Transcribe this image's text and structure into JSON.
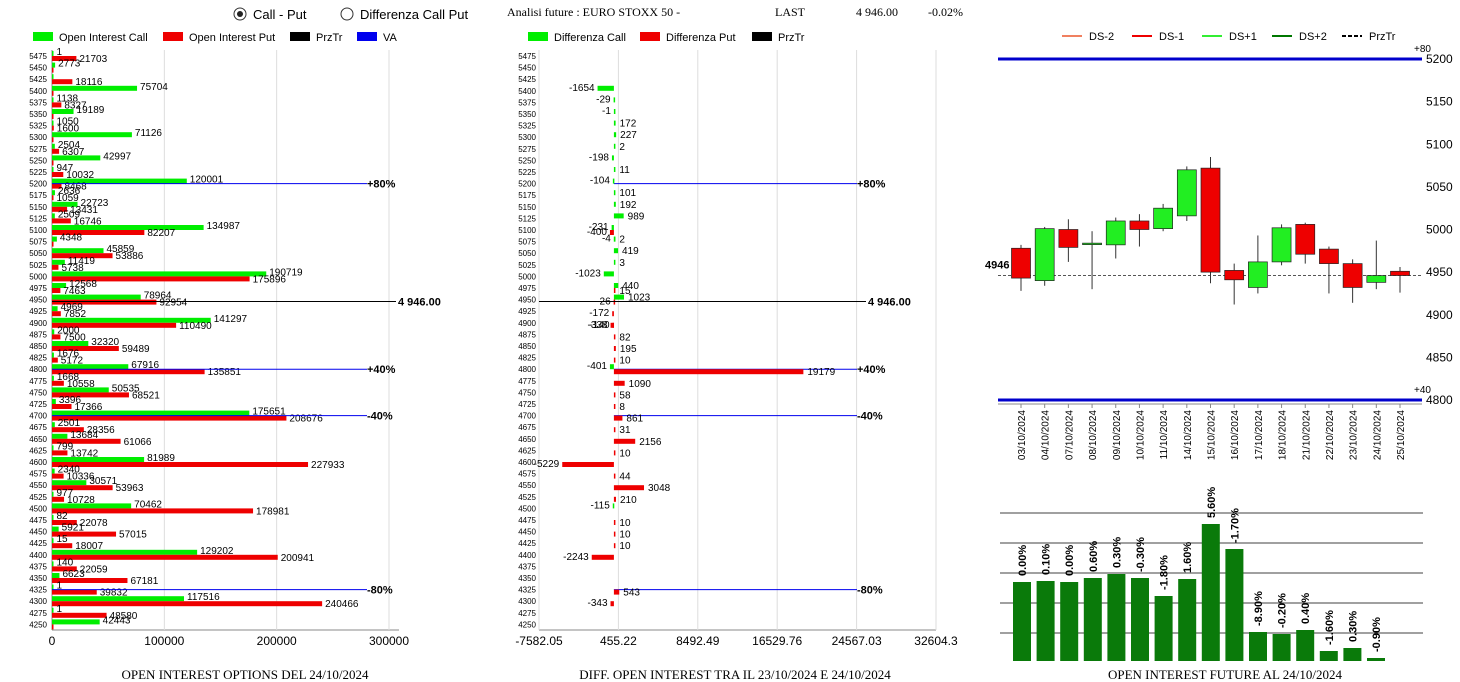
{
  "header": {
    "radio_call_put": "Call - Put",
    "radio_diff": "Differenza Call Put",
    "title": "Analisi future : EURO STOXX 50 -",
    "last_label": "LAST",
    "last_value": "4 946.00",
    "change": "-0.02%"
  },
  "colors": {
    "call": "#00ee00",
    "put": "#ee0000",
    "prztr": "#000000",
    "va": "#0000ee"
  },
  "chart_data": [
    {
      "type": "bar",
      "title": "OPEN INTEREST OPTIONS DEL 24/10/2024",
      "legend": [
        "Open Interest Call",
        "Open Interest Put",
        "PrzTr",
        "VA"
      ],
      "xlim": [
        0,
        300000
      ],
      "x_ticks": [
        "0",
        "100000",
        "200000",
        "300000"
      ],
      "strikes": [
        5475,
        5450,
        5425,
        5400,
        5375,
        5350,
        5325,
        5300,
        5275,
        5250,
        5225,
        5200,
        5175,
        5150,
        5125,
        5100,
        5075,
        5050,
        5025,
        5000,
        4975,
        4950,
        4925,
        4900,
        4875,
        4850,
        4825,
        4800,
        4775,
        4750,
        4725,
        4700,
        4675,
        4650,
        4625,
        4600,
        4575,
        4550,
        4525,
        4500,
        4475,
        4450,
        4425,
        4400,
        4375,
        4350,
        4325,
        4300,
        4275,
        4250
      ],
      "call": [
        1,
        2773,
        1,
        75704,
        1138,
        19189,
        1050,
        71126,
        2504,
        42997,
        947,
        120001,
        2636,
        22723,
        2509,
        134987,
        4348,
        45859,
        11419,
        190719,
        12568,
        78964,
        4969,
        141297,
        2000,
        32320,
        1676,
        67916,
        1668,
        50535,
        3396,
        175651,
        2501,
        13684,
        799,
        81989,
        2340,
        30571,
        977,
        70462,
        82,
        5921,
        15,
        129202,
        140,
        6623,
        1,
        117516,
        1,
        42443
      ],
      "put": [
        21703,
        1,
        18116,
        1,
        8327,
        1,
        1600,
        1,
        6307,
        1,
        10032,
        8468,
        1059,
        13431,
        16746,
        82207,
        1,
        53886,
        5738,
        175896,
        7463,
        92954,
        7852,
        110490,
        7500,
        59489,
        5172,
        135851,
        10558,
        68521,
        17366,
        208676,
        28356,
        61066,
        13742,
        227933,
        10336,
        53963,
        10728,
        178981,
        22078,
        57015,
        18007,
        200941,
        22059,
        67181,
        39832,
        240466,
        48580,
        1
      ],
      "call_labels": [
        "1",
        "2773",
        "",
        "75704",
        "1138",
        "19189",
        "1050",
        "71126",
        "2504",
        "42997",
        "947",
        "120001",
        "2636",
        "22723",
        "2509",
        "134987",
        "4348",
        "45859",
        "11419",
        "190719",
        "12568",
        "78964",
        "4969",
        "141297",
        "2000",
        "32320",
        "1676",
        "67916",
        "1668",
        "50535",
        "3396",
        "175651",
        "2501",
        "13684",
        "799",
        "81989",
        "2340",
        "30571",
        "977",
        "70462",
        "82",
        "5921",
        "15",
        "129202",
        "140",
        "6623",
        "1",
        "117516",
        "1",
        "42443"
      ],
      "put_labels": [
        "21703",
        "",
        "18116",
        "",
        "8327",
        "",
        "1600",
        "",
        "6307",
        "",
        "10032",
        "8468",
        "1059",
        "13431",
        "16746",
        "82207",
        "",
        "53886",
        "5738",
        "175896",
        "7463",
        "92954",
        "7852",
        "110490",
        "7500",
        "59489",
        "5172",
        "135851",
        "10558",
        "68521",
        "17366",
        "208676",
        "28356",
        "61066",
        "13742",
        "227933",
        "10336",
        "53963",
        "10728",
        "178981",
        "22078",
        "57015",
        "18007",
        "200941",
        "22059",
        "67181",
        "39832",
        "240466",
        "48580",
        ""
      ],
      "lines": [
        {
          "strike": 5200,
          "label": "+80%"
        },
        {
          "strike": 4800,
          "label": "+40%"
        },
        {
          "strike": 4700,
          "label": "-40%"
        },
        {
          "strike": 4325,
          "label": "-80%"
        }
      ],
      "przTr": {
        "strike": 4946,
        "label": "4 946.00"
      }
    },
    {
      "type": "bar",
      "title": "DIFF. OPEN INTEREST TRA IL 23/10/2024 E 24/10/2024",
      "legend": [
        "Differenza Call",
        "Differenza Put",
        "PrzTr"
      ],
      "xlim": [
        -7582.05,
        32604.3
      ],
      "x_ticks": [
        "-7582.05",
        "455.22",
        "8492.49",
        "16529.76",
        "24567.03",
        "32604.3"
      ],
      "strikes": [
        5475,
        5450,
        5425,
        5400,
        5375,
        5350,
        5325,
        5300,
        5275,
        5250,
        5225,
        5200,
        5175,
        5150,
        5125,
        5100,
        5075,
        5050,
        5025,
        5000,
        4975,
        4950,
        4925,
        4900,
        4875,
        4850,
        4825,
        4800,
        4775,
        4750,
        4725,
        4700,
        4675,
        4650,
        4625,
        4600,
        4575,
        4550,
        4525,
        4500,
        4475,
        4450,
        4425,
        4400,
        4375,
        4350,
        4325,
        4300,
        4275,
        4250
      ],
      "bars": [
        {
          "strike": 5400,
          "color": "call",
          "value": -1654,
          "label": "-1654"
        },
        {
          "strike": 5375,
          "color": "call",
          "value": -29,
          "label": "-29"
        },
        {
          "strike": 5350,
          "color": "call",
          "value": -1,
          "label": "-1"
        },
        {
          "strike": 5325,
          "color": "call",
          "value": 172,
          "label": "172"
        },
        {
          "strike": 5300,
          "color": "call",
          "value": 227,
          "label": "227"
        },
        {
          "strike": 5275,
          "color": "call",
          "value": 2,
          "label": "2"
        },
        {
          "strike": 5250,
          "color": "call",
          "value": -198,
          "label": "-198"
        },
        {
          "strike": 5225,
          "color": "call",
          "value": 11,
          "label": "11"
        },
        {
          "strike": 5200,
          "color": "call",
          "value": -104,
          "label": "-104"
        },
        {
          "strike": 5175,
          "color": "call",
          "value": 101,
          "label": "101"
        },
        {
          "strike": 5150,
          "color": "call",
          "value": 192,
          "label": "192"
        },
        {
          "strike": 5125,
          "color": "call",
          "value": 989,
          "label": "989"
        },
        {
          "strike": 5100,
          "color": "call",
          "value": -231,
          "label": "-231"
        },
        {
          "strike": 5100,
          "color": "put",
          "value": -400,
          "label": "-400"
        },
        {
          "strike": 5075,
          "color": "call",
          "value": 2,
          "label": "2"
        },
        {
          "strike": 5075,
          "color": "call",
          "value": -4,
          "label": "-4"
        },
        {
          "strike": 5050,
          "color": "call",
          "value": 419,
          "label": "419"
        },
        {
          "strike": 5025,
          "color": "call",
          "value": 3,
          "label": "3"
        },
        {
          "strike": 5000,
          "color": "call",
          "value": -1023,
          "label": "-1023"
        },
        {
          "strike": 4975,
          "color": "call",
          "value": 440,
          "label": "440"
        },
        {
          "strike": 4975,
          "color": "put",
          "value": 15,
          "label": "15"
        },
        {
          "strike": 4950,
          "color": "call",
          "value": 1023,
          "label": "1023"
        },
        {
          "strike": 4950,
          "color": "put",
          "value": -26,
          "label": "-26"
        },
        {
          "strike": 4925,
          "color": "put",
          "value": -172,
          "label": "-172"
        },
        {
          "strike": 4900,
          "color": "put",
          "value": -140,
          "label": "-140"
        },
        {
          "strike": 4900,
          "color": "put",
          "value": -338,
          "label": "-338"
        },
        {
          "strike": 4875,
          "color": "put",
          "value": 82,
          "label": "82"
        },
        {
          "strike": 4850,
          "color": "put",
          "value": 195,
          "label": "195"
        },
        {
          "strike": 4825,
          "color": "put",
          "value": 10,
          "label": "10"
        },
        {
          "strike": 4800,
          "color": "call",
          "value": -401,
          "label": "-401"
        },
        {
          "strike": 4800,
          "color": "put",
          "value": 19179,
          "label": "19179"
        },
        {
          "strike": 4775,
          "color": "put",
          "value": 1090,
          "label": "1090"
        },
        {
          "strike": 4750,
          "color": "put",
          "value": 58,
          "label": "58"
        },
        {
          "strike": 4725,
          "color": "put",
          "value": 8,
          "label": "8"
        },
        {
          "strike": 4700,
          "color": "put",
          "value": 861,
          "label": "861"
        },
        {
          "strike": 4675,
          "color": "put",
          "value": 31,
          "label": "31"
        },
        {
          "strike": 4650,
          "color": "put",
          "value": 2156,
          "label": "2156"
        },
        {
          "strike": 4625,
          "color": "put",
          "value": 10,
          "label": "10"
        },
        {
          "strike": 4600,
          "color": "put",
          "value": -5229,
          "label": "-5229"
        },
        {
          "strike": 4575,
          "color": "put",
          "value": 44,
          "label": "44"
        },
        {
          "strike": 4550,
          "color": "put",
          "value": 3048,
          "label": "3048"
        },
        {
          "strike": 4525,
          "color": "put",
          "value": 210,
          "label": "210"
        },
        {
          "strike": 4500,
          "color": "call",
          "value": -115,
          "label": "-115"
        },
        {
          "strike": 4475,
          "color": "put",
          "value": 10,
          "label": "10"
        },
        {
          "strike": 4450,
          "color": "put",
          "value": 10,
          "label": "10"
        },
        {
          "strike": 4425,
          "color": "put",
          "value": 10,
          "label": "10"
        },
        {
          "strike": 4400,
          "color": "put",
          "value": -2243,
          "label": "-2243"
        },
        {
          "strike": 4325,
          "color": "put",
          "value": 543,
          "label": "543"
        },
        {
          "strike": 4300,
          "color": "put",
          "value": -343,
          "label": "-343"
        }
      ],
      "lines": [
        {
          "strike": 5200,
          "label": "+80%"
        },
        {
          "strike": 4800,
          "label": "+40%"
        },
        {
          "strike": 4700,
          "label": "-40%"
        },
        {
          "strike": 4325,
          "label": "-80%"
        }
      ],
      "przTr": {
        "strike": 4946,
        "label": "4 946.00"
      }
    },
    {
      "type": "candlestick",
      "legend": [
        "DS-2",
        "DS-1",
        "DS+1",
        "DS+2",
        "PrzTr"
      ],
      "legend_colors": [
        "#f08060",
        "#ee0000",
        "#33ee33",
        "#007700",
        "#000000"
      ],
      "ylim": [
        4800,
        5200
      ],
      "y_ticks": [
        "4800",
        "4850",
        "4900",
        "4950",
        "5000",
        "5050",
        "5100",
        "5150",
        "5200"
      ],
      "top_line": {
        "value": 5200,
        "label": "+80"
      },
      "bottom_line": {
        "value": 4800,
        "label": "+40"
      },
      "last": {
        "value": 4946,
        "label": "4946"
      },
      "dates": [
        "03/10/2024",
        "04/10/2024",
        "07/10/2024",
        "08/10/2024",
        "09/10/2024",
        "10/10/2024",
        "11/10/2024",
        "14/10/2024",
        "15/10/2024",
        "16/10/2024",
        "17/10/2024",
        "18/10/2024",
        "21/10/2024",
        "22/10/2024",
        "23/10/2024",
        "24/10/2024",
        "25/10/2024"
      ],
      "candles": [
        {
          "o": 4978,
          "c": 4943,
          "h": 4982,
          "l": 4928
        },
        {
          "o": 4940,
          "c": 5001,
          "h": 5003,
          "l": 4934
        },
        {
          "o": 5000,
          "c": 4979,
          "h": 5012,
          "l": 4962
        },
        {
          "o": 4984,
          "c": 4984,
          "h": 4998,
          "l": 4930
        },
        {
          "o": 4982,
          "c": 5010,
          "h": 5014,
          "l": 4966
        },
        {
          "o": 5010,
          "c": 5000,
          "h": 5018,
          "l": 4980
        },
        {
          "o": 5001,
          "c": 5025,
          "h": 5030,
          "l": 4998
        },
        {
          "o": 5016,
          "c": 5070,
          "h": 5074,
          "l": 5010
        },
        {
          "o": 5072,
          "c": 4950,
          "h": 5085,
          "l": 4937
        },
        {
          "o": 4952,
          "c": 4941,
          "h": 4960,
          "l": 4912
        },
        {
          "o": 4932,
          "c": 4962,
          "h": 4993,
          "l": 4925
        },
        {
          "o": 4962,
          "c": 5002,
          "h": 5006,
          "l": 4958
        },
        {
          "o": 5006,
          "c": 4971,
          "h": 5008,
          "l": 4960
        },
        {
          "o": 4977,
          "c": 4960,
          "h": 4980,
          "l": 4925
        },
        {
          "o": 4960,
          "c": 4932,
          "h": 4965,
          "l": 4914
        },
        {
          "o": 4938,
          "c": 4946,
          "h": 4987,
          "l": 4930
        },
        {
          "o": 4951,
          "c": 4946,
          "h": 4956,
          "l": 4926
        }
      ]
    },
    {
      "type": "bar",
      "title": "OPEN INTEREST FUTURE AL 24/10/2024",
      "values": [
        0.79,
        0.8,
        0.79,
        0.83,
        0.87,
        0.83,
        0.65,
        0.82,
        1.37,
        1.12,
        0.29,
        0.27,
        0.31,
        0.1,
        0.13,
        0.03
      ],
      "labels": [
        "0.00%",
        "0.10%",
        "0.00%",
        "0.60%",
        "0.30%",
        "-0.30%",
        "-1.80%",
        "1.60%",
        "5.60%",
        "-1.70%",
        "-8.90%",
        "-0.20%",
        "0.40%",
        "-1.60%",
        "0.30%",
        "-0.90%"
      ]
    }
  ]
}
